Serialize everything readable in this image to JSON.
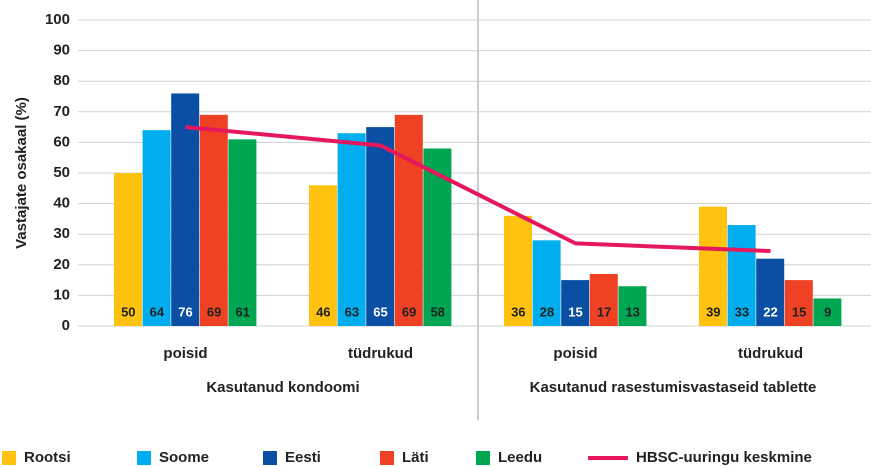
{
  "chart_data": {
    "type": "bar",
    "y_label": "Vastajate osakaal (%)",
    "categories": [
      "poisid",
      "tüdrukud",
      "poisid",
      "tüdrukud"
    ],
    "group_labels": [
      "Kasutanud kondoomi",
      "Kasutanud rasestumisvastaseid tablette"
    ],
    "series": [
      {
        "name": "Rootsi",
        "color": "#ffc20e",
        "values": [
          50,
          46,
          36,
          39
        ]
      },
      {
        "name": "Soome",
        "color": "#00aeef",
        "values": [
          64,
          63,
          28,
          33
        ]
      },
      {
        "name": "Eesti",
        "color": "#0a4fa3",
        "values": [
          76,
          65,
          15,
          22
        ]
      },
      {
        "name": "Läti",
        "color": "#ef4123",
        "values": [
          69,
          69,
          17,
          15
        ]
      },
      {
        "name": "Leedu",
        "color": "#00a651",
        "values": [
          61,
          58,
          13,
          9
        ]
      },
      {
        "name": "HBSC-uuringu keskmine",
        "color": "#e5185e",
        "type": "line",
        "values": [
          65,
          59,
          27,
          24.5
        ]
      }
    ],
    "ylim": [
      0,
      100
    ],
    "yticks": [
      0,
      10,
      20,
      30,
      40,
      50,
      60,
      70,
      80,
      90,
      100
    ],
    "grid": true
  }
}
